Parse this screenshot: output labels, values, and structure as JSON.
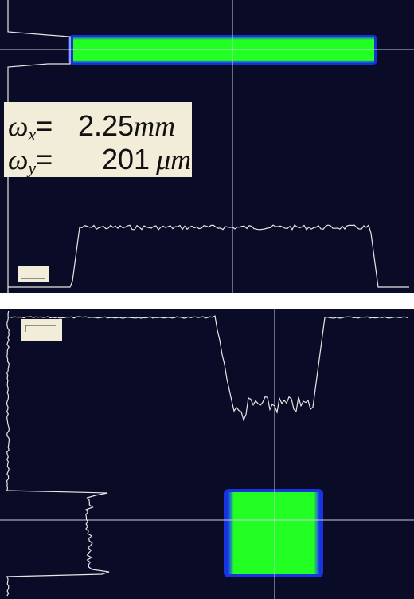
{
  "panels": [
    {
      "annotation": {
        "lines": [
          {
            "symbol": "ω",
            "subscript": "x",
            "equals": "=",
            "value": "2.25",
            "unit": "mm"
          },
          {
            "symbol": "ω",
            "subscript": "y",
            "equals": "=",
            "value": "201",
            "unit": "μm"
          }
        ]
      }
    },
    {}
  ]
}
